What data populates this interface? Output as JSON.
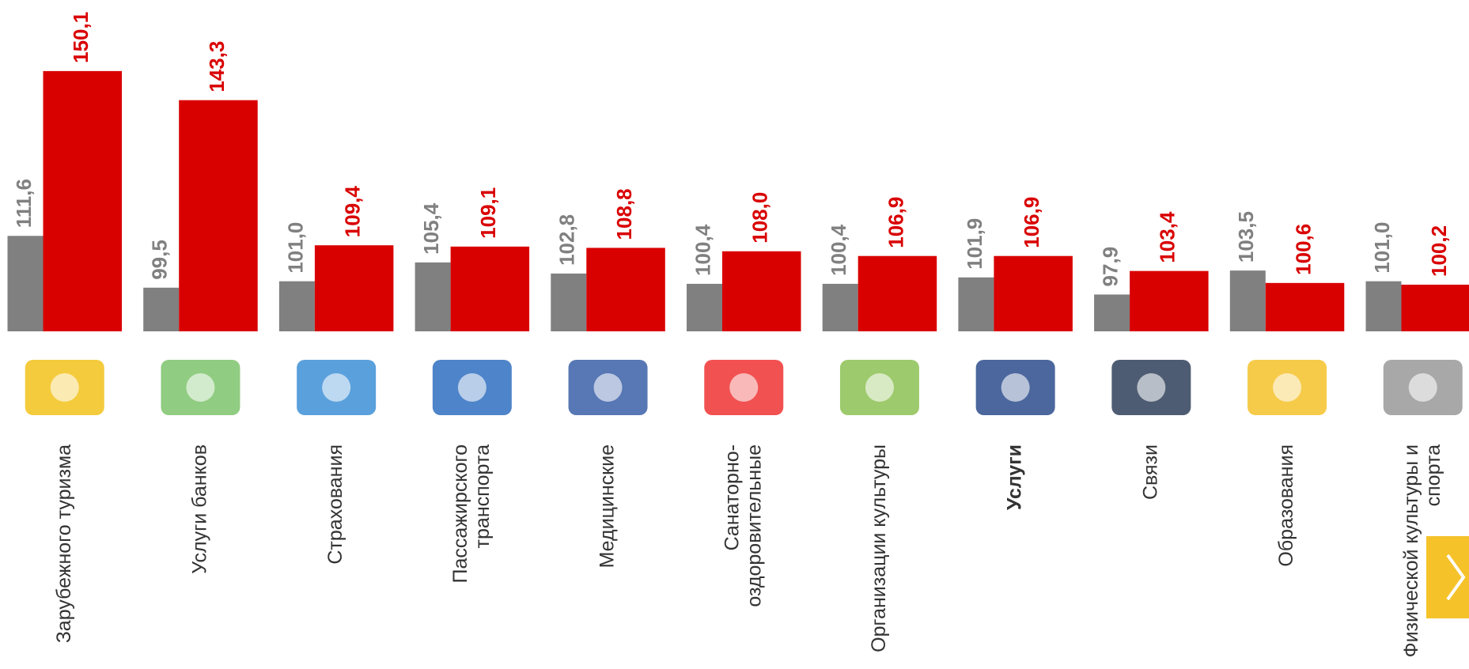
{
  "chart_data": {
    "type": "bar",
    "categories": [
      "Зарубежного туризма",
      "Услуги банков",
      "Страхования",
      "Пассажирского\nтранспорта",
      "Медицинские",
      "Санаторно-\nоздоровительные",
      "Организации культуры",
      "Услуги",
      "Связи",
      "Образования",
      "Физической культуры и\nспорта"
    ],
    "bold_category": 7,
    "series": [
      {
        "color": "#808080",
        "values": [
          111.6,
          99.5,
          101.0,
          105.4,
          102.8,
          100.4,
          100.4,
          101.9,
          97.9,
          103.5,
          101.0
        ],
        "value_labels": [
          "111,6",
          "99,5",
          "101,0",
          "105,4",
          "102,8",
          "100,4",
          "100,4",
          "101,9",
          "97,9",
          "103,5",
          "101,0"
        ]
      },
      {
        "color": "#d90000",
        "values": [
          150.1,
          143.3,
          109.4,
          109.1,
          108.8,
          108.0,
          106.9,
          106.9,
          103.4,
          100.6,
          100.2
        ],
        "value_labels": [
          "150,1",
          "143,3",
          "109,4",
          "109,1",
          "108,8",
          "108,0",
          "106,9",
          "106,9",
          "103,4",
          "100,6",
          "100,2"
        ]
      }
    ],
    "ylim": [
      89.3,
      166.7
    ]
  }
}
